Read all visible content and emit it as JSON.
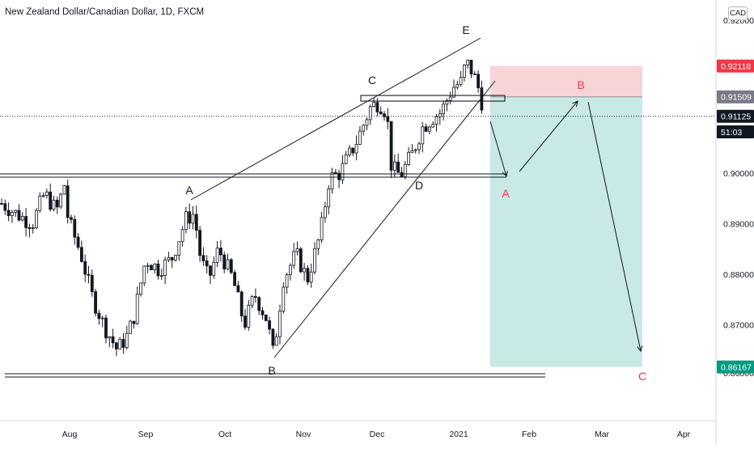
{
  "header": {
    "title": "New Zealand Dollar/Canadian Dollar, 1D, FXCM",
    "currency_button": "CAD"
  },
  "chart_data": {
    "type": "candlestick",
    "price_axis": {
      "ticks": [
        "0.90000",
        "0.89000",
        "0.88000",
        "0.87000"
      ],
      "partial_ticks": [
        "0.92000",
        "0.86000"
      ]
    },
    "time_axis": {
      "ticks": [
        "Aug",
        "Sep",
        "Oct",
        "Nov",
        "Dec",
        "2021",
        "Feb",
        "Mar",
        "Apr"
      ]
    },
    "price_badges": [
      {
        "label": "0.92118",
        "color": "#f23645",
        "text_color": "#ffffff"
      },
      {
        "label": "0.91509",
        "color": "#787b86",
        "text_color": "#ffffff"
      },
      {
        "label": "0.91125",
        "color": "#131722",
        "text_color": "#ffffff"
      },
      {
        "label": "51:03",
        "color": "#131722",
        "text_color": "#ffffff"
      },
      {
        "label": "0.86167",
        "color": "#089981",
        "text_color": "#ffffff"
      }
    ],
    "wave_labels": {
      "black": [
        "A",
        "B",
        "C",
        "D",
        "E"
      ],
      "red": [
        "A",
        "B",
        "C"
      ]
    },
    "position": {
      "entry": 0.91509,
      "stop": 0.92118,
      "target": 0.86167,
      "stop_color": "#f7d4d6",
      "target_color": "#c8e9e6"
    },
    "candle_colors": {
      "up": "#131722",
      "down": "#131722"
    }
  }
}
